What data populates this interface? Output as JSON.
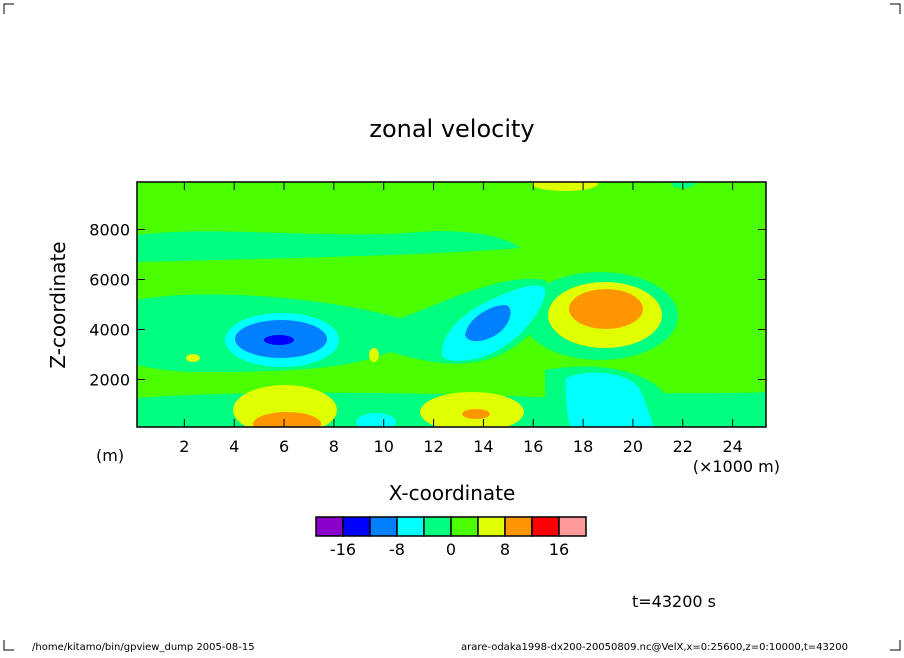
{
  "chart_data": {
    "type": "contour",
    "title": "zonal velocity",
    "x_label": "X-coordinate",
    "y_label": "Z-coordinate",
    "y_unit": "(m)",
    "x_unit": "(×1000 m)",
    "time_label": "t=43200 s",
    "footer_left": "/home/kitamo/bin/gpview_dump  2005-08-15",
    "footer_right": "arare-odaka1998-dx200-20050809.nc@VelX,x=0:25600,z=0:10000,t=43200",
    "xlim": [
      0.1,
      25.5
    ],
    "ylim": [
      100,
      9900
    ],
    "xticks": [
      2,
      4,
      6,
      8,
      10,
      12,
      14,
      16,
      18,
      20,
      22,
      24
    ],
    "yticks": [
      2000,
      4000,
      6000,
      8000
    ],
    "levels": [
      -20,
      -16,
      -12,
      -8,
      -4,
      0,
      4,
      8,
      12,
      16,
      20
    ],
    "colors": [
      "#8a00c8",
      "#0000ff",
      "#0080ff",
      "#00ffff",
      "#00ff80",
      "#4cff00",
      "#e0ff00",
      "#ff9600",
      "#ff0000",
      "#ff9a9a"
    ],
    "colorbar_ticks": [
      -16,
      -8,
      0,
      8,
      16
    ]
  }
}
